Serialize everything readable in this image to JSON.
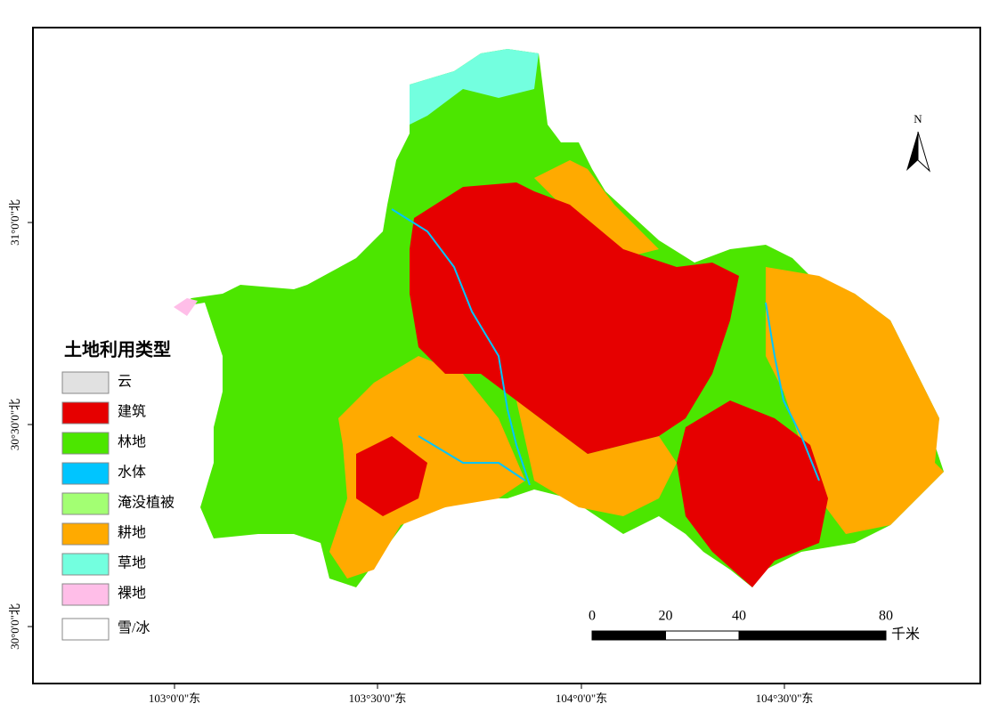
{
  "map": {
    "legend": {
      "title": "土地利用类型",
      "items": [
        {
          "label": "云",
          "color": "#e1e1e1"
        },
        {
          "label": "建筑",
          "color": "#e60000"
        },
        {
          "label": "林地",
          "color": "#4ce600"
        },
        {
          "label": "水体",
          "color": "#00c5ff"
        },
        {
          "label": "淹没植被",
          "color": "#a3ff73"
        },
        {
          "label": "耕地",
          "color": "#ffaa00"
        },
        {
          "label": "草地",
          "color": "#73ffdf"
        },
        {
          "label": "裸地",
          "color": "#ffbee8"
        },
        {
          "label": "雪/冰",
          "color": "#ffffff"
        }
      ]
    },
    "x_labels": [
      "103°0'0\"东",
      "103°30'0\"东",
      "104°0'0\"东",
      "104°30'0\"东"
    ],
    "y_labels": [
      "31°0'0\"北",
      "30°30'0\"北",
      "30°0'0\"北"
    ],
    "scale_bar": {
      "ticks": [
        0,
        20,
        40,
        80
      ],
      "unit": "千米"
    },
    "north": "N"
  }
}
